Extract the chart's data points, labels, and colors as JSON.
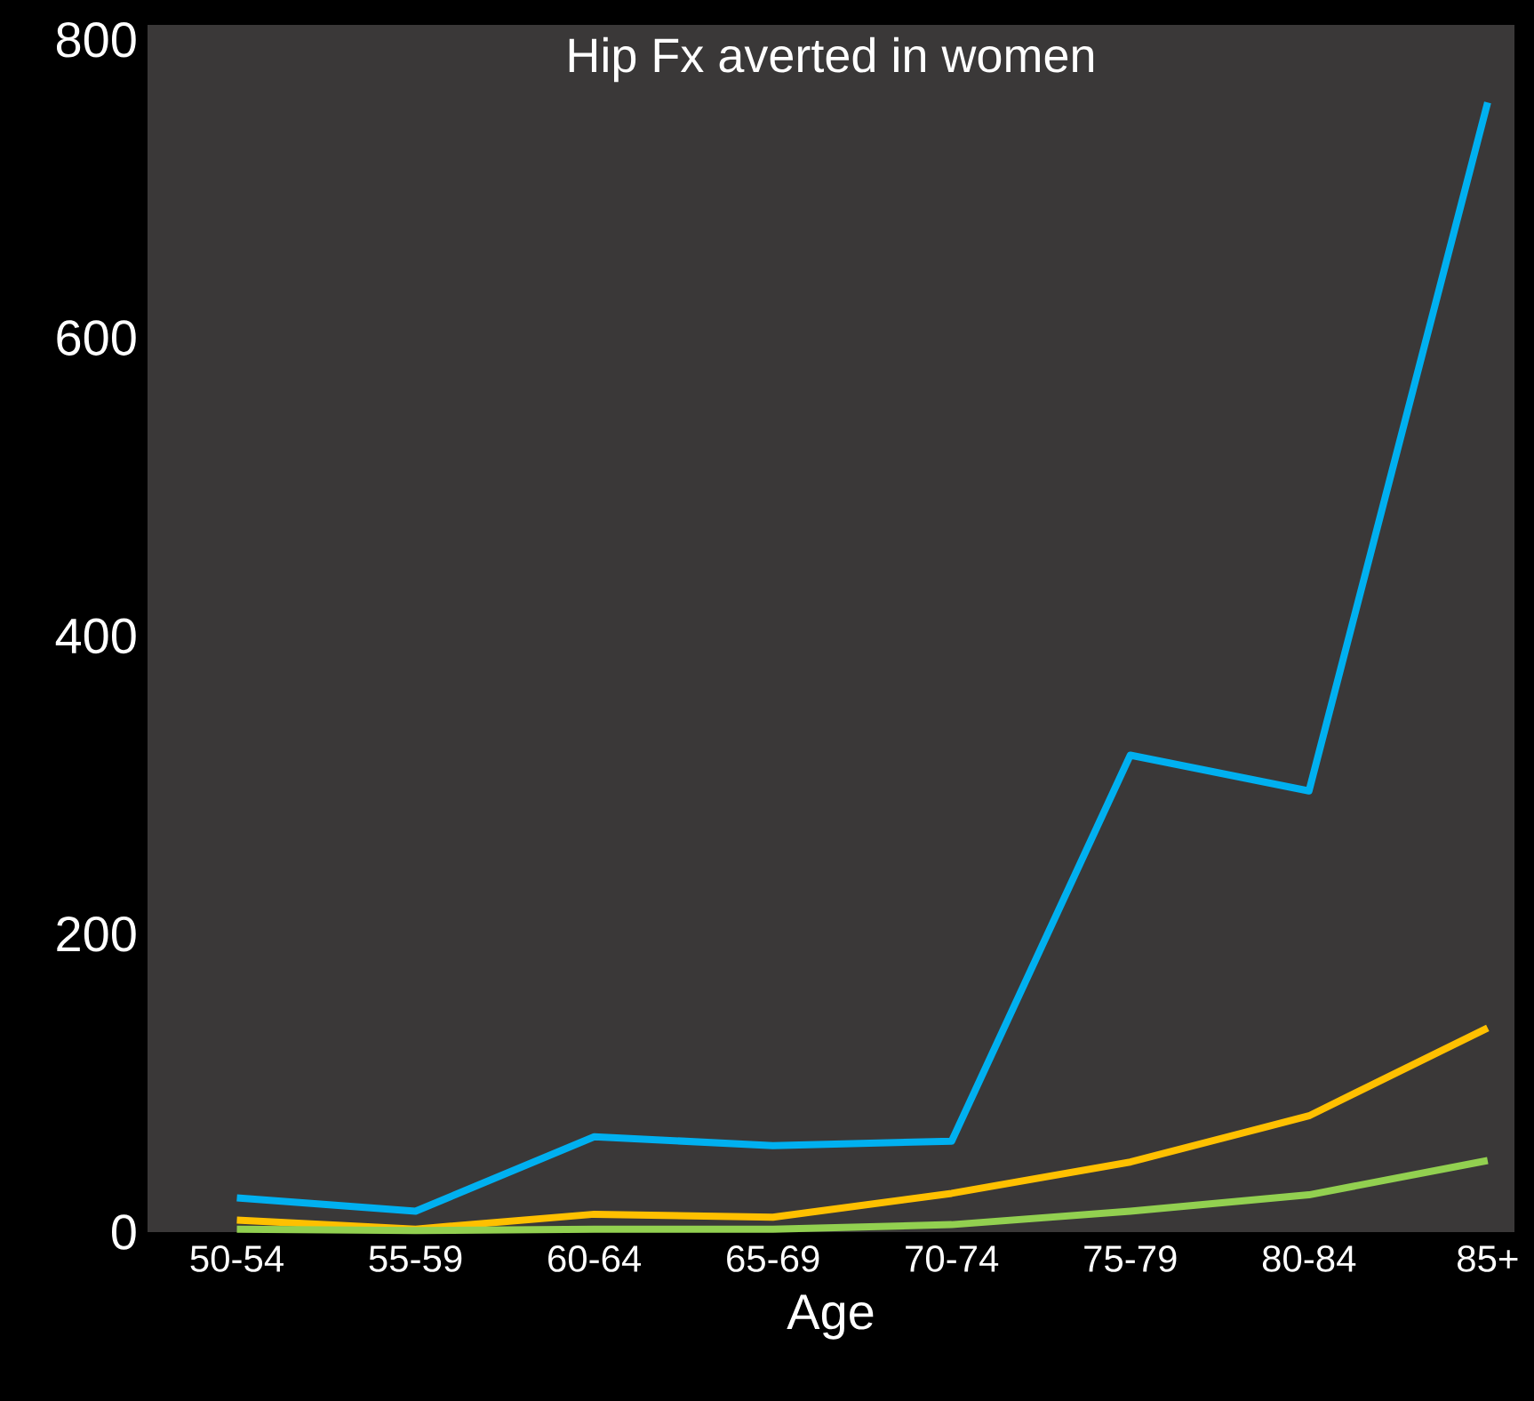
{
  "chart_data": {
    "type": "line",
    "title": "Hip Fx averted in women",
    "xlabel": "Age",
    "categories": [
      "50-54",
      "55-59",
      "60-64",
      "65-69",
      "70-74",
      "75-79",
      "80-84",
      "85+"
    ],
    "series": [
      {
        "color": "#00b0f0",
        "values": [
          23,
          14,
          64,
          58,
          61,
          320,
          296,
          758
        ]
      },
      {
        "color": "#ffc000",
        "values": [
          8,
          2,
          12,
          10,
          26,
          47,
          78,
          137
        ]
      },
      {
        "color": "#92d050",
        "values": [
          2,
          1,
          2,
          2,
          5,
          14,
          25,
          48
        ]
      }
    ],
    "ylim": [
      0,
      810
    ],
    "yticks": [
      0,
      200,
      400,
      600,
      800
    ],
    "grid": false,
    "marker": "none",
    "line_style": "solid"
  }
}
